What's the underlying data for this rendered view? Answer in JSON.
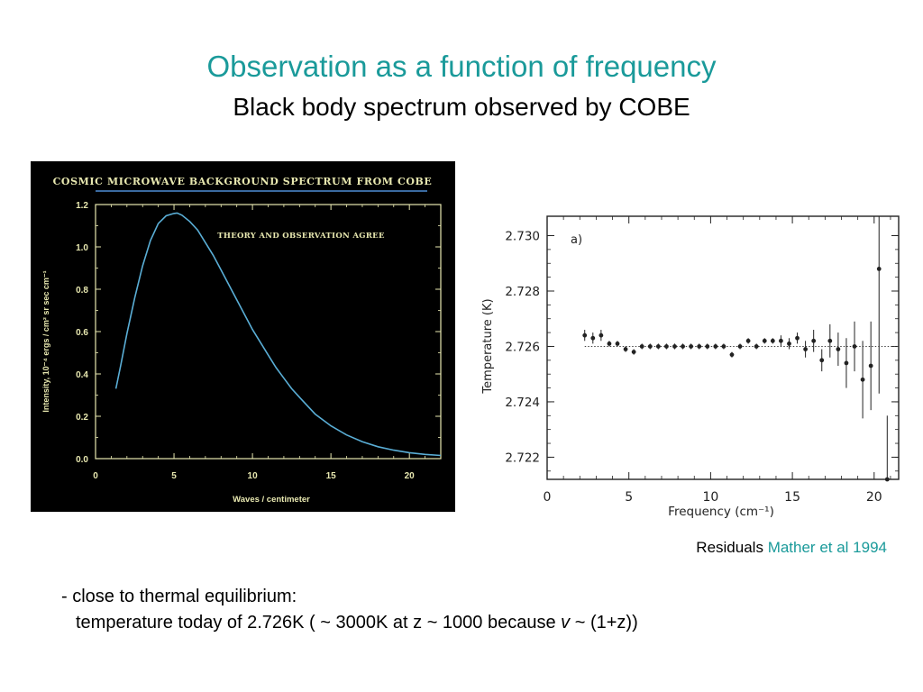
{
  "slide": {
    "title": "Observation as a function of frequency",
    "subtitle": "Black body spectrum observed by COBE",
    "caption_prefix": "Residuals",
    "caption_reference": "Mather et al 1994",
    "bullet_line1": "- close to thermal equilibrium:",
    "bullet_line2_a": "temperature today of 2.726K ( ~ 3000K at z ~ 1000 because",
    "bullet_line2_italic": "v",
    "bullet_line2_b": "~ (1+z))"
  },
  "colors": {
    "title": "#1a9a9a",
    "cobe_background": "#000000",
    "cobe_curve": "#5aaed6",
    "cobe_axis": "#e8e8b0",
    "cobe_title_rule": "#3a6aa0"
  },
  "chart_data": [
    {
      "type": "line",
      "title": "Cosmic Microwave Background Spectrum from COBE",
      "annotation": "Theory and observation agree",
      "xlabel": "Waves / centimeter",
      "ylabel": "Intensity, 10⁻⁴ ergs / cm² sr sec cm⁻¹",
      "xlim": [
        0,
        22
      ],
      "ylim": [
        0,
        1.2
      ],
      "x_ticks": [
        0,
        5,
        10,
        15,
        20
      ],
      "y_ticks": [
        0.0,
        0.2,
        0.4,
        0.6,
        0.8,
        1.0,
        1.2
      ],
      "y_tick_labels": [
        "0.0",
        "0.2",
        "0.4",
        "0.6",
        "0.8",
        "1.0",
        "1.2"
      ],
      "grid": false,
      "series": [
        {
          "x": [
            1.3,
            1.6,
            2,
            2.5,
            3,
            3.5,
            4,
            4.5,
            5,
            5.2,
            5.5,
            6,
            6.5,
            7,
            7.5,
            8,
            8.5,
            9,
            9.5,
            10,
            10.5,
            11,
            11.5,
            12,
            12.5,
            13,
            13.5,
            14,
            15,
            16,
            17,
            18,
            19,
            20,
            21,
            22
          ],
          "values": [
            0.33,
            0.44,
            0.59,
            0.76,
            0.91,
            1.03,
            1.11,
            1.147,
            1.158,
            1.16,
            1.15,
            1.12,
            1.08,
            1.02,
            0.96,
            0.89,
            0.82,
            0.75,
            0.68,
            0.61,
            0.55,
            0.49,
            0.43,
            0.38,
            0.33,
            0.29,
            0.25,
            0.21,
            0.155,
            0.112,
            0.08,
            0.056,
            0.04,
            0.028,
            0.02,
            0.015
          ]
        }
      ]
    },
    {
      "type": "scatter",
      "panel_label": "a)",
      "xlabel": "Frequency (cm⁻¹)",
      "ylabel": "Temperature (K)",
      "xlim": [
        0,
        21.5
      ],
      "ylim": [
        2.7212,
        2.7307
      ],
      "x_ticks": [
        0,
        5,
        10,
        15,
        20
      ],
      "y_ticks": [
        2.722,
        2.724,
        2.726,
        2.728,
        2.73
      ],
      "y_tick_labels": [
        "2.722",
        "2.724",
        "2.726",
        "2.728",
        "2.730"
      ],
      "grid": false,
      "reference_line": 2.726,
      "series": [
        {
          "x": [
            2.3,
            2.8,
            3.3,
            3.8,
            4.3,
            4.8,
            5.3,
            5.8,
            6.3,
            6.8,
            7.3,
            7.8,
            8.3,
            8.8,
            9.3,
            9.8,
            10.3,
            10.8,
            11.3,
            11.8,
            12.3,
            12.8,
            13.3,
            13.8,
            14.3,
            14.8,
            15.3,
            15.8,
            16.3,
            16.8,
            17.3,
            17.8,
            18.3,
            18.8,
            19.3,
            19.8,
            20.3,
            20.8
          ],
          "values": [
            2.7264,
            2.7263,
            2.7264,
            2.7261,
            2.7261,
            2.7259,
            2.7258,
            2.726,
            2.726,
            2.726,
            2.726,
            2.726,
            2.726,
            2.726,
            2.726,
            2.726,
            2.726,
            2.726,
            2.7257,
            2.726,
            2.7262,
            2.726,
            2.7262,
            2.7262,
            2.7262,
            2.7261,
            2.7263,
            2.7259,
            2.7262,
            2.7255,
            2.7262,
            2.7259,
            2.7254,
            2.726,
            2.7248,
            2.7253,
            2.7288,
            2.7212
          ],
          "errors": [
            0.0002,
            0.0002,
            0.0002,
            0.0001,
            0.0001,
            0.0001,
            0.0001,
            0.0001,
            0.0001,
            0.0001,
            0.0001,
            0.0001,
            0.0001,
            0.0001,
            0.0001,
            0.0001,
            0.0001,
            0.0001,
            0.0001,
            0.0001,
            0.0001,
            0.0001,
            0.0001,
            0.0001,
            0.0002,
            0.0002,
            0.0002,
            0.0003,
            0.0004,
            0.0004,
            0.0006,
            0.0006,
            0.0009,
            0.0009,
            0.0014,
            0.0016,
            0.0045,
            0.0023
          ]
        }
      ]
    }
  ]
}
